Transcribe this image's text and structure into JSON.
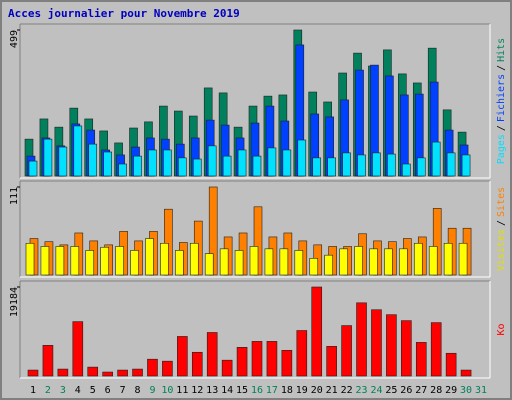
{
  "title": "Acces journalier pour Novembre 2019",
  "categories": [
    "1",
    "2",
    "3",
    "4",
    "5",
    "6",
    "7",
    "8",
    "9",
    "10",
    "11",
    "12",
    "13",
    "14",
    "15",
    "16",
    "17",
    "18",
    "19",
    "20",
    "21",
    "22",
    "23",
    "24",
    "25",
    "26",
    "27",
    "28",
    "29",
    "30",
    "31"
  ],
  "category_colors": [
    "#000000",
    "#00805c",
    "#00805c",
    "#000000",
    "#000000",
    "#000000",
    "#000000",
    "#000000",
    "#00805c",
    "#00805c",
    "#000000",
    "#000000",
    "#000000",
    "#000000",
    "#000000",
    "#00805c",
    "#00805c",
    "#000000",
    "#000000",
    "#000000",
    "#000000",
    "#000000",
    "#00805c",
    "#00805c",
    "#000000",
    "#000000",
    "#000000",
    "#000000",
    "#000000",
    "#00805c",
    "#00805c"
  ],
  "legend_separator": "/",
  "chart_data": [
    {
      "type": "bar",
      "ylim": [
        0,
        499
      ],
      "yticks": [
        499
      ],
      "series": [
        {
          "name": "Hits",
          "color": "#00805c",
          "values": [
            126,
            195,
            167,
            232,
            195,
            154,
            113,
            164,
            185,
            239,
            222,
            205,
            301,
            284,
            167,
            239,
            273,
            277,
            499,
            287,
            253,
            352,
            420,
            376,
            431,
            349,
            318,
            437,
            226,
            150,
            null
          ]
        },
        {
          "name": "Fichiers",
          "color": "#0040ff",
          "values": [
            68,
            130,
            103,
            178,
            157,
            89,
            72,
            99,
            130,
            126,
            109,
            130,
            191,
            174,
            130,
            181,
            239,
            188,
            448,
            212,
            202,
            260,
            362,
            379,
            342,
            277,
            280,
            321,
            157,
            106,
            null
          ]
        },
        {
          "name": "Pages",
          "color": "#00e0ff",
          "values": [
            51,
            126,
            99,
            171,
            109,
            82,
            41,
            68,
            89,
            89,
            62,
            58,
            103,
            68,
            89,
            68,
            96,
            89,
            123,
            62,
            62,
            79,
            72,
            79,
            75,
            41,
            62,
            116,
            79,
            72,
            null
          ]
        }
      ]
    },
    {
      "type": "bar",
      "ylim": [
        0,
        111
      ],
      "yticks": [
        111
      ],
      "series": [
        {
          "name": "Sites",
          "color": "#ff8000",
          "values": [
            46,
            42,
            38,
            53,
            43,
            38,
            55,
            43,
            55,
            83,
            41,
            68,
            111,
            48,
            53,
            86,
            48,
            53,
            43,
            38,
            36,
            36,
            52,
            43,
            42,
            46,
            48,
            84,
            59,
            59,
            null
          ]
        },
        {
          "name": "Visites",
          "color": "#ffff00",
          "values": [
            40,
            36,
            36,
            36,
            31,
            35,
            36,
            31,
            46,
            40,
            31,
            40,
            27,
            33,
            31,
            36,
            33,
            33,
            31,
            21,
            25,
            33,
            36,
            33,
            33,
            33,
            40,
            36,
            40,
            40,
            null
          ]
        }
      ]
    },
    {
      "type": "bar",
      "ylim": [
        0,
        19184
      ],
      "yticks": [
        19184
      ],
      "series": [
        {
          "name": "Ko",
          "color": "#ff0000",
          "values": [
            1279,
            6608,
            1492,
            11724,
            1918,
            853,
            1279,
            1492,
            3624,
            3197,
            8526,
            5116,
            9379,
            3411,
            6181,
            7460,
            7460,
            5542,
            9805,
            19184,
            6395,
            10871,
            15773,
            14281,
            13215,
            11937,
            7247,
            11510,
            4903,
            1279,
            null
          ]
        }
      ]
    }
  ]
}
